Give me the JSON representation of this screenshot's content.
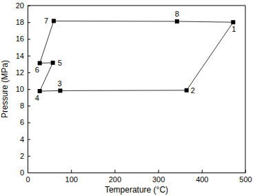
{
  "chart_data": {
    "type": "line",
    "x_label": "Temperature (°C)",
    "y_label": "Pressure (MPa)",
    "x": [
      472,
      365,
      75,
      28,
      58,
      28,
      60,
      343
    ],
    "values": [
      18.0,
      9.85,
      9.8,
      9.75,
      13.15,
      13.1,
      18.15,
      18.1
    ],
    "point_labels": [
      "1",
      "2",
      "3",
      "4",
      "5",
      "6",
      "7",
      "8"
    ],
    "color": "#000000",
    "marker": "square",
    "line_style": "solid",
    "xlim": [
      0,
      500
    ],
    "xticks": [
      0,
      100,
      200,
      300,
      400,
      500
    ],
    "ylim": [
      0,
      20
    ],
    "yticks": [
      0,
      2,
      4,
      6,
      8,
      10,
      12,
      14,
      16,
      18,
      20
    ],
    "grid": false
  }
}
